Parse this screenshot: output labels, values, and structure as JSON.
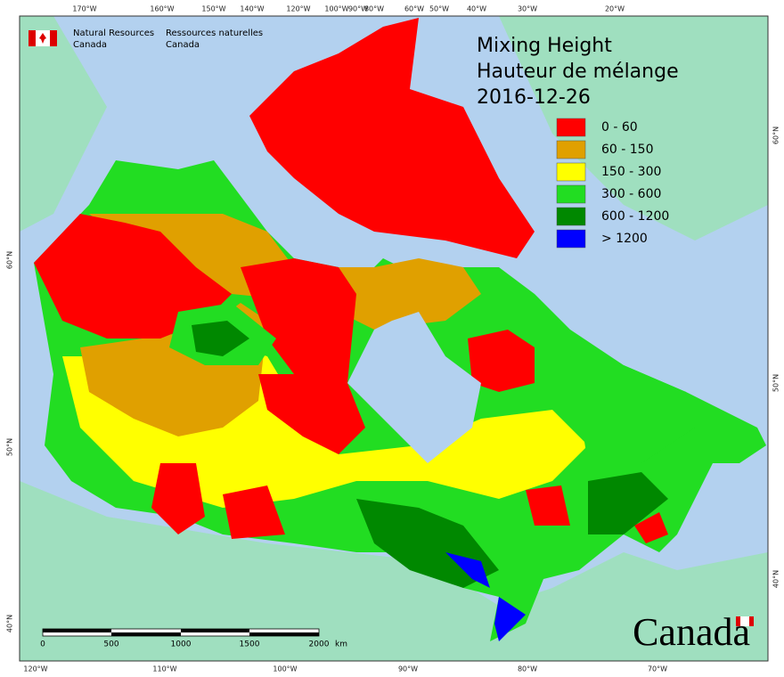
{
  "agency": {
    "en": [
      "Natural Resources",
      "Canada"
    ],
    "fr": [
      "Ressources naturelles",
      "Canada"
    ]
  },
  "title": [
    "Mixing Height",
    "Hauteur de mélange",
    "2016-12-26"
  ],
  "legend": [
    {
      "label": "0 - 60",
      "color": "#ff0000"
    },
    {
      "label": "60 - 150",
      "color": "#e0a000"
    },
    {
      "label": "150 - 300",
      "color": "#ffff00"
    },
    {
      "label": "300 - 600",
      "color": "#22dd22"
    },
    {
      "label": "600 - 1200",
      "color": "#008800"
    },
    {
      "label": "> 1200",
      "color": "#0000ff"
    }
  ],
  "top_labels": [
    "170°W",
    "160°W",
    "150°W",
    "140°W",
    "120°W",
    "100°W",
    "90°W",
    "80°W",
    "60°W",
    "50°W",
    "40°W",
    "30°W",
    "20°W"
  ],
  "bottom_labels": [
    "120°W",
    "110°W",
    "100°W",
    "90°W",
    "80°W",
    "70°W"
  ],
  "left_labels": [
    "60°N",
    "50°N",
    "40°N"
  ],
  "right_labels": [
    "60°N",
    "50°N",
    "40°N"
  ],
  "scale_bar": {
    "labels": [
      "0",
      "500",
      "1000",
      "1500",
      "2000"
    ],
    "unit": "km"
  },
  "wordmark": "Canada"
}
